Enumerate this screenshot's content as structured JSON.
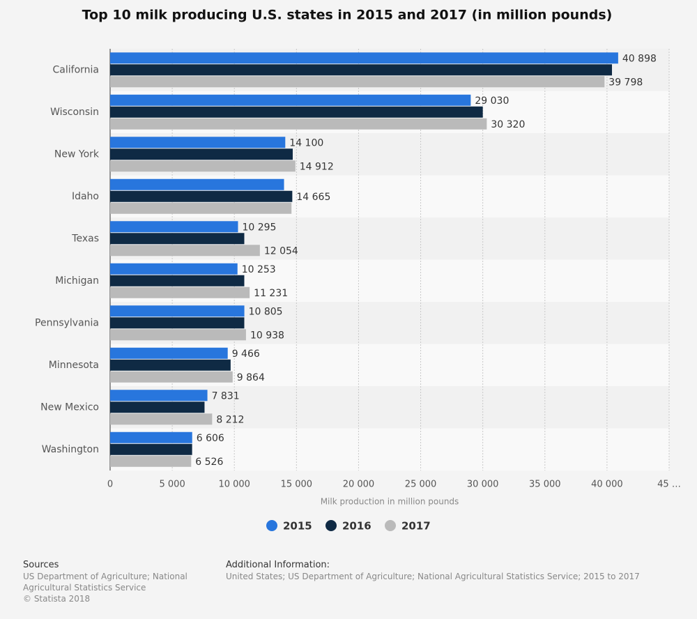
{
  "chart_data": {
    "type": "bar",
    "orientation": "horizontal",
    "title": "Top 10 milk producing U.S. states in 2015 and 2017 (in million pounds)",
    "x_axis_label": "Milk production in million pounds",
    "categories": [
      "California",
      "Wisconsin",
      "New York",
      "Idaho",
      "Texas",
      "Michigan",
      "Pennsylvania",
      "Minnesota",
      "New Mexico",
      "Washington"
    ],
    "series": [
      {
        "name": "2015",
        "color": "#2876dd",
        "values": [
          40898,
          29030,
          14100,
          14000,
          10295,
          10253,
          10805,
          9466,
          7831,
          6606
        ],
        "value_labels": [
          "40 898",
          "29 030",
          "14 100",
          null,
          "10 295",
          "10 253",
          "10 805",
          "9 466",
          "7 831",
          "6 606"
        ]
      },
      {
        "name": "2016",
        "color": "#0f2a44",
        "values": [
          40400,
          30000,
          14700,
          14665,
          10800,
          10800,
          10800,
          9700,
          7600,
          6600
        ],
        "value_labels": [
          null,
          null,
          null,
          "14 665",
          null,
          null,
          null,
          null,
          null,
          null
        ]
      },
      {
        "name": "2017",
        "color": "#bababa",
        "values": [
          39798,
          30320,
          14912,
          14600,
          12054,
          11231,
          10938,
          9864,
          8212,
          6526
        ],
        "value_labels": [
          "39 798",
          "30 320",
          "14 912",
          null,
          "12 054",
          "11 231",
          "10 938",
          "9 864",
          "8 212",
          "6 526"
        ]
      }
    ],
    "xlim": [
      0,
      45000
    ],
    "xticks": [
      0,
      {
        "value": 5000,
        "label": "5 000"
      },
      {
        "value": 10000,
        "label": "10 000"
      },
      {
        "value": 15000,
        "label": "15 000"
      },
      {
        "value": 20000,
        "label": "20 000"
      },
      {
        "value": 25000,
        "label": "25 000"
      },
      {
        "value": 30000,
        "label": "30 000"
      },
      {
        "value": 35000,
        "label": "35 000"
      },
      {
        "value": 40000,
        "label": "40 000"
      },
      {
        "value": 45000,
        "label": "45 …"
      }
    ],
    "grid": true,
    "legend": "bottom"
  },
  "footer": {
    "sources_title": "Sources",
    "sources": [
      "US Department of Agriculture; National",
      "Agricultural Statistics Service",
      "© Statista 2018"
    ],
    "info_title": "Additional Information:",
    "info": "United States; US Department of Agriculture; National Agricultural Statistics Service; 2015 to 2017"
  }
}
